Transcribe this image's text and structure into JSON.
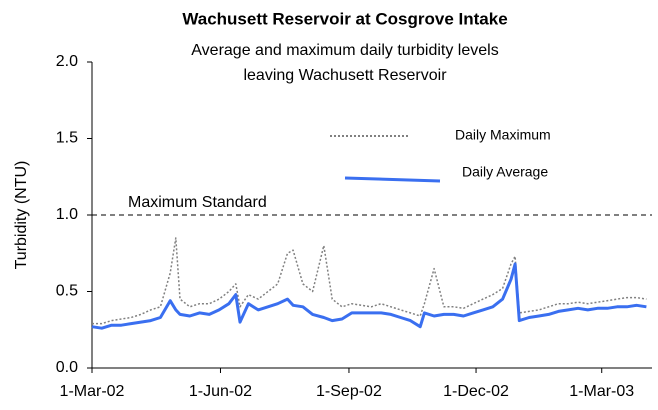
{
  "chart_data": {
    "type": "line",
    "title": "Wachusett Reservoir at Cosgrove Intake",
    "subtitle": "Average and maximum daily turbidity levels leaving Wachusett Reservoir",
    "y_label": "Turbidity (NTU)",
    "reference_line": {
      "value": 1,
      "label": "Maximum Standard"
    },
    "x": [
      "2002-03-01",
      "2002-03-08",
      "2002-03-15",
      "2002-03-22",
      "2002-03-29",
      "2002-04-05",
      "2002-04-12",
      "2002-04-19",
      "2002-04-26",
      "2002-04-30",
      "2002-05-03",
      "2002-05-10",
      "2002-05-17",
      "2002-05-24",
      "2002-05-31",
      "2002-06-07",
      "2002-06-12",
      "2002-06-15",
      "2002-06-21",
      "2002-06-28",
      "2002-07-05",
      "2002-07-12",
      "2002-07-19",
      "2002-07-23",
      "2002-07-30",
      "2002-08-06",
      "2002-08-14",
      "2002-08-20",
      "2002-08-27",
      "2002-09-03",
      "2002-09-10",
      "2002-09-17",
      "2002-09-24",
      "2002-10-01",
      "2002-10-08",
      "2002-10-15",
      "2002-10-22",
      "2002-10-25",
      "2002-11-01",
      "2002-11-08",
      "2002-11-15",
      "2002-11-22",
      "2002-11-29",
      "2002-12-06",
      "2002-12-13",
      "2002-12-20",
      "2002-12-26",
      "2002-12-29",
      "2003-01-01",
      "2003-01-08",
      "2003-01-15",
      "2003-01-22",
      "2003-01-29",
      "2003-02-05",
      "2003-02-12",
      "2003-02-19",
      "2003-02-26",
      "2003-03-05",
      "2003-03-12",
      "2003-03-19",
      "2003-03-26",
      "2003-04-02"
    ],
    "series": [
      {
        "name": "Daily Maximum",
        "color": "#808080",
        "dashed": true,
        "values": [
          0.29,
          0.29,
          0.31,
          0.32,
          0.33,
          0.35,
          0.38,
          0.4,
          0.62,
          0.85,
          0.45,
          0.4,
          0.42,
          0.42,
          0.45,
          0.5,
          0.55,
          0.4,
          0.48,
          0.45,
          0.5,
          0.55,
          0.75,
          0.77,
          0.55,
          0.5,
          0.8,
          0.45,
          0.4,
          0.42,
          0.41,
          0.4,
          0.42,
          0.4,
          0.38,
          0.36,
          0.34,
          0.42,
          0.65,
          0.4,
          0.4,
          0.39,
          0.42,
          0.45,
          0.48,
          0.52,
          0.68,
          0.73,
          0.36,
          0.37,
          0.38,
          0.4,
          0.42,
          0.42,
          0.43,
          0.42,
          0.43,
          0.44,
          0.45,
          0.46,
          0.46,
          0.45
        ]
      },
      {
        "name": "Daily Average",
        "color": "#3a6ff0",
        "dashed": false,
        "values": [
          0.27,
          0.26,
          0.28,
          0.28,
          0.29,
          0.3,
          0.31,
          0.33,
          0.44,
          0.38,
          0.35,
          0.34,
          0.36,
          0.35,
          0.38,
          0.42,
          0.48,
          0.3,
          0.42,
          0.38,
          0.4,
          0.42,
          0.45,
          0.41,
          0.4,
          0.35,
          0.33,
          0.31,
          0.32,
          0.36,
          0.36,
          0.36,
          0.36,
          0.35,
          0.33,
          0.31,
          0.27,
          0.36,
          0.34,
          0.35,
          0.35,
          0.34,
          0.36,
          0.38,
          0.4,
          0.45,
          0.58,
          0.68,
          0.31,
          0.33,
          0.34,
          0.35,
          0.37,
          0.38,
          0.39,
          0.38,
          0.39,
          0.39,
          0.4,
          0.4,
          0.41,
          0.4
        ]
      }
    ],
    "xlim": [
      "2002-03-01",
      "2003-04-06"
    ],
    "xticks": [
      {
        "value": "2002-03-01",
        "label": "1-Mar-02"
      },
      {
        "value": "2002-06-01",
        "label": "1-Jun-02"
      },
      {
        "value": "2002-09-01",
        "label": "1-Sep-02"
      },
      {
        "value": "2002-12-01",
        "label": "1-Dec-02"
      },
      {
        "value": "2003-03-01",
        "label": "1-Mar-03"
      }
    ],
    "ylim": [
      0,
      2
    ],
    "yticks": [
      {
        "value": 0,
        "label": "0.0"
      },
      0.5,
      {
        "value": 1,
        "label": "1.0"
      },
      1.5,
      {
        "value": 2,
        "label": "2.0"
      }
    ]
  }
}
